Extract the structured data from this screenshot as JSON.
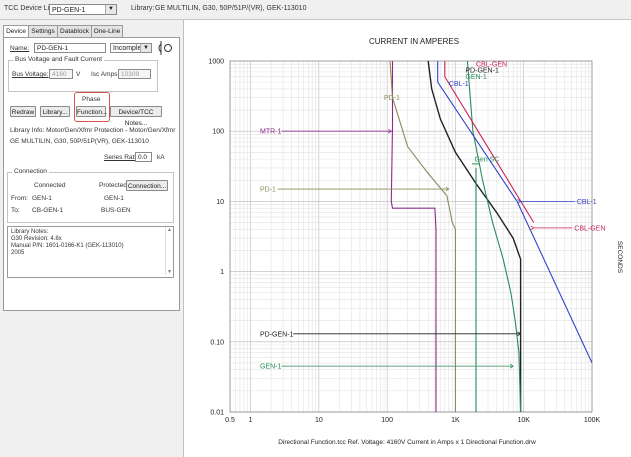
{
  "toolbar": {
    "device_list_label": "TCC Device List",
    "device_value": "PD-GEN-1",
    "library_label": "Library:",
    "library_value": "GE MULTILIN, G30, 50P/51P/(VR), GEK-113010"
  },
  "tabs": [
    "Device",
    "Settings",
    "Datablock",
    "One-Line"
  ],
  "device": {
    "name_label": "Name:",
    "name_value": "PD-GEN-1",
    "status_value": "Incomplete",
    "bus_group_label": "Bus Voltage and Fault Current",
    "bus_voltage_label": "Bus Voltage:",
    "bus_voltage_value": "4160",
    "bus_voltage_unit": "V",
    "isc_label": "Isc Amps:",
    "isc_value": "10309",
    "phase_label": "Phase",
    "buttons": {
      "redraw": "Redraw",
      "library": "Library...",
      "function": "Function...",
      "notes": "Device/TCC Notes..."
    },
    "library_info_line1": "Library Info:  Motor/Gen/Xfmr Protection - Motor/Gen/Xfmr",
    "library_info_line2": "GE MULTILIN, G30, 50P/51P(VR), GEK-113010",
    "series_rating_label": "Series Rating:",
    "series_rating_value": "0.0",
    "series_rating_unit": "kA",
    "connection_group_label": "Connection",
    "connected_header": "Connected",
    "protected_header": "Protected",
    "connection_button": "Connection...",
    "from_label": "From:",
    "from_connected": "GEN-1",
    "from_protected": "GEN-1",
    "to_label": "To:",
    "to_connected": "CB-GEN-1",
    "to_protected": "BUS-GEN",
    "notes_lines": [
      "Library Notes:",
      "G30 Revision: 4.8x",
      "Manual P/N: 1601-0166-K1 (GEK-113010)",
      "2005"
    ]
  },
  "chart_data": {
    "type": "line",
    "title": "CURRENT IN AMPERES",
    "xlabel": "Directional Function.tcc   Ref. Voltage: 4160V   Current in Amps x 1   Directional Function.drw",
    "ylabel": "SECONDS",
    "x_scale": "log",
    "y_scale": "log",
    "xlim": [
      0.5,
      100000
    ],
    "ylim": [
      0.01,
      1000
    ],
    "x_ticks": [
      {
        "v": 0.5,
        "label": "0.5"
      },
      {
        "v": 1,
        "label": "1"
      },
      {
        "v": 10,
        "label": "10"
      },
      {
        "v": 100,
        "label": "100"
      },
      {
        "v": 1000,
        "label": "1K"
      },
      {
        "v": 10000,
        "label": "10K"
      },
      {
        "v": 100000,
        "label": "100K"
      }
    ],
    "y_ticks": [
      {
        "v": 1000,
        "label": "1000"
      },
      {
        "v": 100,
        "label": "100"
      },
      {
        "v": 10,
        "label": "10"
      },
      {
        "v": 1,
        "label": "1"
      },
      {
        "v": 0.1,
        "label": "0.10"
      },
      {
        "v": 0.01,
        "label": "0.01"
      }
    ],
    "grid": true,
    "series": [
      {
        "name": "MTR-1",
        "color": "#8b2a8b",
        "points": [
          [
            120,
            1000
          ],
          [
            120,
            120
          ],
          [
            115,
            10
          ],
          [
            120,
            8
          ],
          [
            500,
            8
          ],
          [
            520,
            4
          ],
          [
            520,
            0.01
          ]
        ]
      },
      {
        "name": "PD-1",
        "color": "#8a8a5a",
        "points": [
          [
            110,
            1000
          ],
          [
            120,
            300
          ],
          [
            200,
            60
          ],
          [
            400,
            25
          ],
          [
            750,
            12
          ],
          [
            900,
            5
          ],
          [
            1000,
            4
          ],
          [
            1000,
            0.01
          ]
        ]
      },
      {
        "name": "PD-GEN-1",
        "color": "#222222",
        "points": [
          [
            400,
            1000
          ],
          [
            450,
            400
          ],
          [
            600,
            150
          ],
          [
            1000,
            50
          ],
          [
            2000,
            18
          ],
          [
            4000,
            7
          ],
          [
            7000,
            3
          ],
          [
            9000,
            1.5
          ],
          [
            9000,
            0.01
          ]
        ]
      },
      {
        "name": "GEN-1",
        "color": "#2a8a5a",
        "points": [
          [
            1500,
            1000
          ],
          [
            1800,
            100
          ],
          [
            2500,
            20
          ],
          [
            3500,
            5
          ],
          [
            5000,
            1.5
          ],
          [
            6500,
            0.5
          ],
          [
            7500,
            0.2
          ],
          [
            8500,
            0.07
          ],
          [
            9000,
            0.01
          ]
        ]
      },
      {
        "name": "Gen SC",
        "color": "#2a8a5a",
        "points": [
          [
            2000,
            30
          ],
          [
            2000,
            0.01
          ]
        ]
      },
      {
        "name": "CBL-1",
        "color": "#3344cc",
        "points": [
          [
            550,
            1000
          ],
          [
            550,
            500
          ],
          [
            8000,
            10
          ],
          [
            100000,
            0.05
          ]
        ]
      },
      {
        "name": "CBL-GEN",
        "color": "#cc2255",
        "points": [
          [
            700,
            1000
          ],
          [
            700,
            600
          ],
          [
            14000,
            5
          ]
        ]
      }
    ],
    "labels": [
      {
        "text": "MTR-1",
        "color": "#8b2a8b"
      },
      {
        "text": "PD-1",
        "color": "#8a8a5a"
      },
      {
        "text": "PD-1",
        "color": "#8a8a5a"
      },
      {
        "text": "CBL-GEN",
        "color": "#cc2255"
      },
      {
        "text": "PD-GEN-1",
        "color": "#222222"
      },
      {
        "text": "GEN-1",
        "color": "#2a8a5a"
      },
      {
        "text": "CBL-1",
        "color": "#3344cc"
      },
      {
        "text": "Gen SC",
        "color": "#2a8a5a"
      },
      {
        "text": "CBL-1",
        "color": "#3344cc"
      },
      {
        "text": "CBL-GEN",
        "color": "#cc2255"
      },
      {
        "text": "PD-GEN-1",
        "color": "#222222"
      },
      {
        "text": "GEN-1",
        "color": "#2a8a5a"
      }
    ]
  }
}
